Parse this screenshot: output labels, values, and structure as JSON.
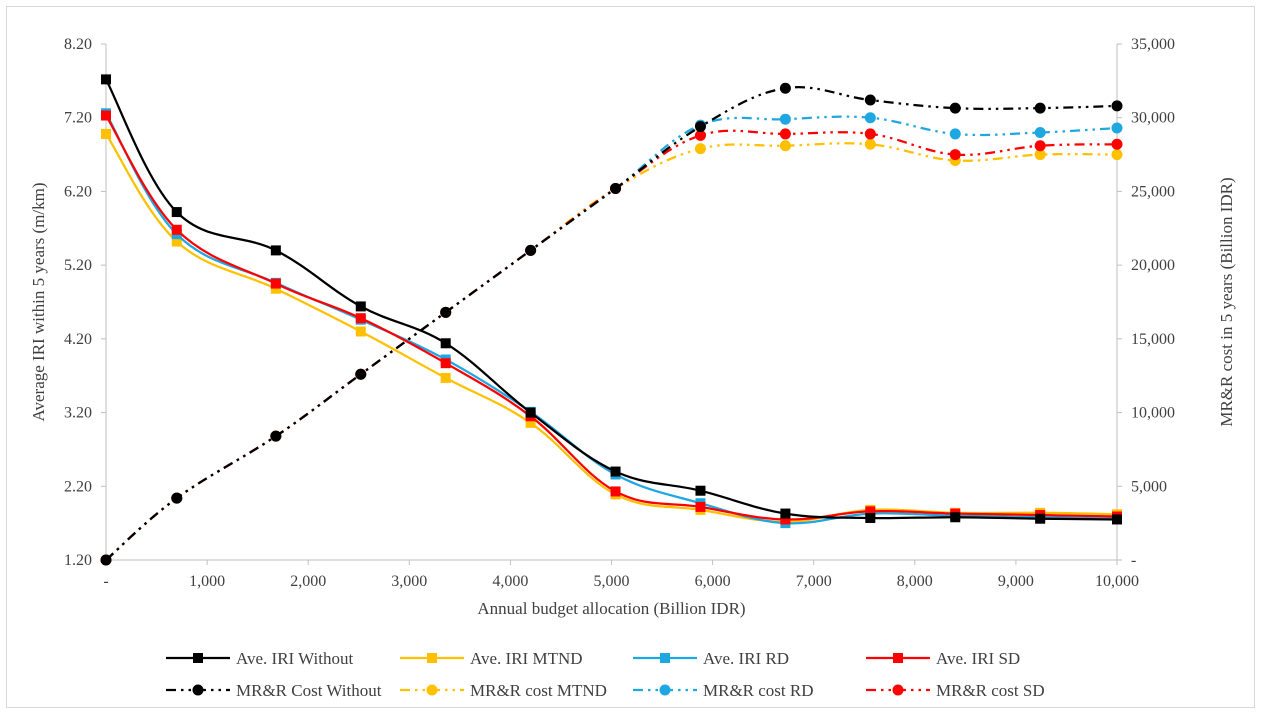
{
  "chart_data": {
    "type": "line",
    "title": "",
    "xlabel": "Annual budget allocation (Billion IDR)",
    "ylabel_left": "Average IRI within  5 years (m/km)",
    "ylabel_right": "MR&R cost in  5 years (Billion IDR)",
    "x_ticks": [
      "-",
      "1,000",
      "2,000",
      "3,000",
      "4,000",
      "5,000",
      "6,000",
      "7,000",
      "8,000",
      "9,000",
      "10,000"
    ],
    "y_left_ticks": [
      "8.20",
      "7.20",
      "6.20",
      "5.20",
      "4.20",
      "3.20",
      "2.20",
      "1.20"
    ],
    "y_right_ticks": [
      "35,000",
      "30,000",
      "25,000",
      "20,000",
      "15,000",
      "10,000",
      "5,000",
      "-"
    ],
    "xlim": [
      0,
      10000
    ],
    "ylim_left": [
      1.2,
      8.2
    ],
    "ylim_right": [
      0,
      35000
    ],
    "grid": false,
    "legend_position": "bottom",
    "x": [
      0,
      700,
      1680,
      2520,
      3360,
      4200,
      5040,
      5880,
      6720,
      7560,
      8400,
      9240,
      10000
    ],
    "series": [
      {
        "name": "Ave. IRI Without",
        "axis": "left",
        "style": "solid",
        "marker": "square",
        "color": "#000000",
        "values": [
          7.72,
          5.92,
          5.4,
          4.64,
          4.14,
          3.2,
          2.4,
          2.14,
          1.83,
          1.77,
          1.78,
          1.76,
          1.75
        ]
      },
      {
        "name": "Ave. IRI MTND",
        "axis": "left",
        "style": "solid",
        "marker": "square",
        "color": "#ffc000",
        "values": [
          6.98,
          5.52,
          4.88,
          4.3,
          3.67,
          3.06,
          2.09,
          1.88,
          1.72,
          1.88,
          1.84,
          1.84,
          1.82
        ]
      },
      {
        "name": "Ave. IRI RD",
        "axis": "left",
        "style": "solid",
        "marker": "square",
        "color": "#1fa7e1",
        "values": [
          7.26,
          5.62,
          4.96,
          4.46,
          3.92,
          3.21,
          2.36,
          1.97,
          1.7,
          1.83,
          1.8,
          1.78,
          1.76
        ]
      },
      {
        "name": "Ave. IRI SD",
        "axis": "left",
        "style": "solid",
        "marker": "square",
        "color": "#ff0000",
        "values": [
          7.23,
          5.68,
          4.95,
          4.48,
          3.87,
          3.15,
          2.13,
          1.92,
          1.75,
          1.86,
          1.83,
          1.81,
          1.79
        ]
      },
      {
        "name": "MR&R Cost Without",
        "axis": "right",
        "style": "dashdotdot",
        "marker": "circle",
        "color": "#000000",
        "values": [
          0,
          4200,
          8400,
          12600,
          16800,
          21000,
          25200,
          29400,
          32000,
          31200,
          30650,
          30650,
          30800
        ]
      },
      {
        "name": "MR&R cost MTND",
        "axis": "right",
        "style": "dashdotdot",
        "marker": "circle",
        "color": "#ffc000",
        "values": [
          0,
          4200,
          8400,
          12600,
          16800,
          21000,
          25200,
          27900,
          28100,
          28200,
          27100,
          27500,
          27500
        ]
      },
      {
        "name": "MR&R cost RD",
        "axis": "right",
        "style": "dashdotdot",
        "marker": "circle",
        "color": "#1fa7e1",
        "values": [
          0,
          4200,
          8400,
          12600,
          16800,
          21000,
          25200,
          29500,
          29900,
          30000,
          28900,
          29000,
          29300
        ]
      },
      {
        "name": "MR&R cost SD",
        "axis": "right",
        "style": "dashdotdot",
        "marker": "circle",
        "color": "#ff0000",
        "values": [
          0,
          4200,
          8400,
          12600,
          16800,
          21000,
          25200,
          28800,
          28900,
          28900,
          27500,
          28100,
          28200
        ]
      }
    ]
  }
}
